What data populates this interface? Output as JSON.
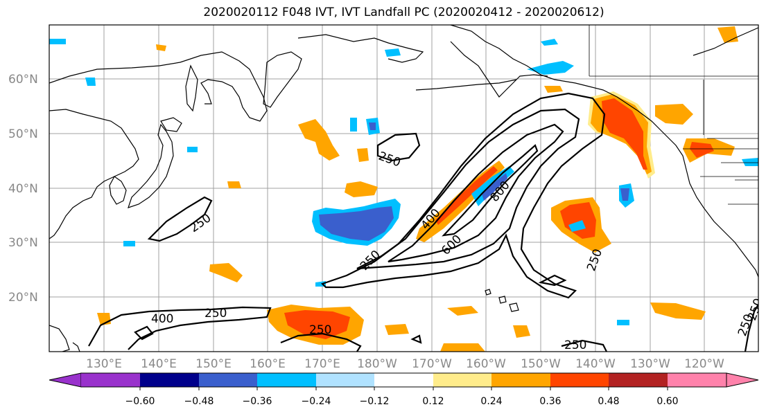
{
  "title": "2020020112 F048 IVT, IVT Landfall PC (2020020412 - 2020020612)",
  "lat_labels": [
    "60°N",
    "50°N",
    "40°N",
    "30°N",
    "20°N"
  ],
  "lon_labels": [
    "130°E",
    "140°E",
    "150°E",
    "160°E",
    "170°E",
    "180°W",
    "170°W",
    "160°W",
    "150°W",
    "140°W",
    "130°W",
    "120°W"
  ],
  "contour_labels": [
    "250",
    "250",
    "250",
    "400",
    "250",
    "250",
    "400",
    "600",
    "800",
    "250",
    "250",
    "250",
    "250"
  ],
  "colorbar": {
    "colors": [
      "#9932cc",
      "#00008b",
      "#3a5fcd",
      "#00bfff",
      "#b0e2ff",
      "#ffffff",
      "#ffec8b",
      "#ffa500",
      "#ff4500",
      "#b22222",
      "#ff82ab"
    ],
    "tick_labels": [
      "−0.60",
      "−0.48",
      "−0.36",
      "−0.24",
      "−0.12",
      "0.12",
      "0.24",
      "0.36",
      "0.48",
      "0.60"
    ]
  }
}
